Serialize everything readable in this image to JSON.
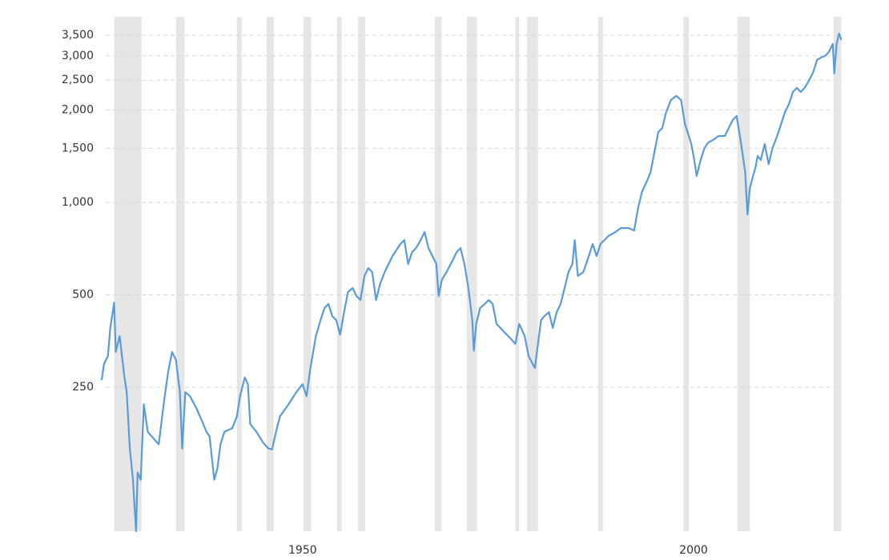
{
  "chart_data": {
    "type": "line",
    "color": "#5b9bd5",
    "band_color": "#e6e6e6",
    "log_scale": true,
    "grid": true,
    "xlim": [
      1924.0,
      2018.9
    ],
    "xticks": [
      1950,
      2000
    ],
    "ylim": [
      85,
      4020
    ],
    "yticks": [
      250,
      500,
      {
        "value": 1000,
        "label": "1,000"
      },
      {
        "value": 1500,
        "label": "1,500"
      },
      {
        "value": 2000,
        "label": "2,000"
      },
      {
        "value": 2500,
        "label": "2,500"
      },
      {
        "value": 3000,
        "label": "3,000"
      },
      {
        "value": 3500,
        "label": "3,500"
      }
    ],
    "recessions": [
      [
        1925.9,
        1929.4
      ],
      [
        1933.8,
        1934.9
      ],
      [
        1941.6,
        1942.2
      ],
      [
        1945.4,
        1946.3
      ],
      [
        1950.1,
        1951.1
      ],
      [
        1954.4,
        1955.0
      ],
      [
        1957.1,
        1958.0
      ],
      [
        1966.9,
        1967.8
      ],
      [
        1971.0,
        1972.3
      ],
      [
        1977.2,
        1977.7
      ],
      [
        1978.7,
        1980.1
      ],
      [
        1987.8,
        1988.4
      ],
      [
        1998.7,
        1999.4
      ],
      [
        2005.6,
        2007.2
      ],
      [
        2017.9,
        2018.9
      ]
    ],
    "x": [
      1924.3,
      1924.6,
      1925.1,
      1925.4,
      1925.9,
      1926.1,
      1926.6,
      1927.2,
      1927.5,
      1927.9,
      1928.3,
      1928.7,
      1928.9,
      1929.3,
      1929.7,
      1930.2,
      1930.7,
      1931.6,
      1932.3,
      1932.8,
      1933.3,
      1933.8,
      1934.3,
      1934.6,
      1935.0,
      1935.6,
      1936.4,
      1937.1,
      1937.7,
      1938.1,
      1938.7,
      1939.1,
      1939.5,
      1940.0,
      1941.0,
      1941.6,
      1942.0,
      1942.6,
      1943.0,
      1943.3,
      1944.1,
      1944.9,
      1945.6,
      1946.1,
      1946.6,
      1947.1,
      1948.2,
      1949.2,
      1950.0,
      1950.5,
      1951.0,
      1951.7,
      1952.3,
      1952.8,
      1953.3,
      1953.8,
      1954.3,
      1954.8,
      1955.3,
      1955.8,
      1956.4,
      1956.9,
      1957.4,
      1957.9,
      1958.4,
      1958.9,
      1959.4,
      1959.9,
      1960.5,
      1961.5,
      1962.5,
      1963.0,
      1963.5,
      1964.0,
      1964.5,
      1965.1,
      1965.6,
      1966.1,
      1966.6,
      1967.1,
      1967.4,
      1967.8,
      1968.4,
      1969.2,
      1969.7,
      1970.2,
      1970.7,
      1971.2,
      1971.7,
      1971.9,
      1972.2,
      1972.7,
      1973.3,
      1973.8,
      1974.3,
      1974.8,
      1975.3,
      1975.8,
      1976.3,
      1976.8,
      1977.2,
      1977.7,
      1978.4,
      1978.9,
      1979.7,
      1980.1,
      1980.5,
      1980.9,
      1981.5,
      1982.0,
      1982.5,
      1983.0,
      1983.5,
      1984.0,
      1984.5,
      1984.8,
      1985.2,
      1985.9,
      1986.6,
      1987.1,
      1987.6,
      1988.1,
      1988.6,
      1989.1,
      1990.0,
      1990.7,
      1991.7,
      1992.4,
      1992.9,
      1993.4,
      1994.1,
      1994.5,
      1995.1,
      1995.5,
      1996.0,
      1996.5,
      1997.1,
      1997.8,
      1998.4,
      1998.9,
      1999.4,
      1999.7,
      2000.0,
      2000.4,
      2000.9,
      2001.4,
      2001.9,
      2002.5,
      2003.2,
      2004.0,
      2004.5,
      2005.0,
      2005.5,
      2006.0,
      2006.6,
      2006.9,
      2007.2,
      2007.6,
      2007.9,
      2008.2,
      2008.6,
      2009.1,
      2009.6,
      2010.1,
      2010.7,
      2011.2,
      2011.7,
      2012.2,
      2012.7,
      2013.2,
      2013.7,
      2014.2,
      2014.8,
      2015.3,
      2015.8,
      2016.3,
      2016.8,
      2017.3,
      2017.8,
      2018.0,
      2018.3,
      2018.6,
      2018.9
    ],
    "values": [
      264,
      298,
      316,
      390,
      472,
      326,
      367,
      272,
      241,
      158,
      125,
      85,
      132,
      125,
      220,
      179,
      173,
      163,
      227,
      280,
      326,
      307,
      241,
      158,
      241,
      234,
      214,
      195,
      179,
      173,
      125,
      136,
      163,
      179,
      184,
      201,
      234,
      269,
      256,
      190,
      179,
      166,
      158,
      157,
      179,
      201,
      220,
      241,
      256,
      234,
      289,
      367,
      414,
      453,
      467,
      426,
      414,
      371,
      439,
      511,
      526,
      495,
      481,
      576,
      611,
      593,
      481,
      542,
      593,
      669,
      732,
      754,
      630,
      689,
      710,
      754,
      801,
      710,
      669,
      630,
      495,
      559,
      593,
      649,
      689,
      710,
      630,
      526,
      414,
      329,
      402,
      453,
      467,
      481,
      467,
      402,
      390,
      378,
      367,
      356,
      346,
      402,
      367,
      316,
      289,
      346,
      414,
      426,
      439,
      390,
      439,
      467,
      526,
      593,
      630,
      754,
      576,
      593,
      669,
      732,
      669,
      732,
      754,
      777,
      801,
      825,
      825,
      810,
      959,
      1081,
      1183,
      1256,
      1503,
      1695,
      1747,
      1969,
      2155,
      2221,
      2155,
      1800,
      1645,
      1549,
      1416,
      1219,
      1374,
      1503,
      1568,
      1597,
      1645,
      1645,
      1747,
      1855,
      1911,
      1597,
      1256,
      914,
      1114,
      1219,
      1294,
      1416,
      1374,
      1549,
      1333,
      1503,
      1645,
      1800,
      1969,
      2091,
      2288,
      2358,
      2288,
      2358,
      2503,
      2658,
      2909,
      2962,
      2997,
      3088,
      3279,
      2627,
      3279,
      3546,
      3379
    ]
  }
}
